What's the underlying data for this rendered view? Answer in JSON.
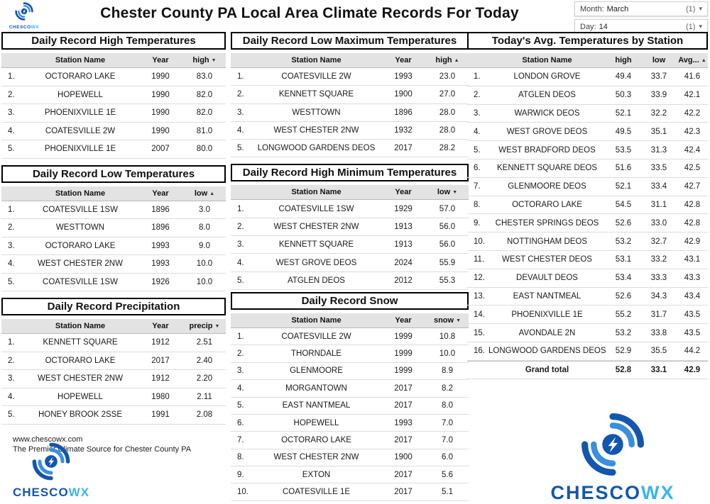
{
  "header": {
    "title": "Chester County PA Local Area Climate Records For Today"
  },
  "filters": {
    "month": {
      "label": "Month:",
      "value": "March",
      "count": "(1)"
    },
    "day": {
      "label": "Day:",
      "value": "14",
      "count": "(1)"
    }
  },
  "icons": {
    "chevron_down": "▾",
    "sort_asc": "▲",
    "sort_desc": "▼"
  },
  "logo": {
    "primary": "CHESCO",
    "secondary": "WX"
  },
  "footer": {
    "website": "www.chescowx.com",
    "tagline": "The Premier Climate Source for Chester County PA"
  },
  "colors": {
    "logo_primary": "#1456ad",
    "logo_secondary": "#38b6ea",
    "table_header_bg": "#e3e3e3",
    "title_border": "#000000"
  },
  "chart_data": [
    {
      "type": "table",
      "title": "Daily Record High Temperatures",
      "headers": [
        "Station Name",
        "Year",
        "high"
      ],
      "sort": {
        "col": 2,
        "dir": "desc"
      },
      "rows": [
        [
          "OCTORARO LAKE",
          "1990",
          "83.0"
        ],
        [
          "HOPEWELL",
          "1990",
          "82.0"
        ],
        [
          "PHOENIXVILLE 1E",
          "1990",
          "82.0"
        ],
        [
          "COATESVILLE 2W",
          "1990",
          "81.0"
        ],
        [
          "PHOENIXVILLE 1E",
          "2007",
          "80.0"
        ]
      ]
    },
    {
      "type": "table",
      "title": "Daily Record Low Temperatures",
      "headers": [
        "Station Name",
        "Year",
        "low"
      ],
      "sort": {
        "col": 2,
        "dir": "asc"
      },
      "rows": [
        [
          "COATESVILLE 1SW",
          "1896",
          "3.0"
        ],
        [
          "WESTTOWN",
          "1896",
          "8.0"
        ],
        [
          "OCTORARO LAKE",
          "1993",
          "9.0"
        ],
        [
          "WEST CHESTER 2NW",
          "1993",
          "10.0"
        ],
        [
          "COATESVILLE 1SW",
          "1926",
          "10.0"
        ]
      ]
    },
    {
      "type": "table",
      "title": "Daily Record Precipitation",
      "headers": [
        "Station Name",
        "Year",
        "precip"
      ],
      "sort": {
        "col": 2,
        "dir": "desc"
      },
      "rows": [
        [
          "KENNETT SQUARE",
          "1912",
          "2.51"
        ],
        [
          "OCTORARO LAKE",
          "2017",
          "2.40"
        ],
        [
          "WEST CHESTER 2NW",
          "1912",
          "2.20"
        ],
        [
          "HOPEWELL",
          "1980",
          "2.11"
        ],
        [
          "HONEY BROOK 2SSE",
          "1991",
          "2.08"
        ]
      ]
    },
    {
      "type": "table",
      "title": "Daily Record Low Maximum Temperatures",
      "headers": [
        "Station Name",
        "Year",
        "high"
      ],
      "sort": {
        "col": 2,
        "dir": "asc"
      },
      "rows": [
        [
          "COATESVILLE 2W",
          "1993",
          "23.0"
        ],
        [
          "KENNETT SQUARE",
          "1900",
          "27.0"
        ],
        [
          "WESTTOWN",
          "1896",
          "28.0"
        ],
        [
          "WEST CHESTER 2NW",
          "1932",
          "28.0"
        ],
        [
          "LONGWOOD GARDENS DEOS",
          "2017",
          "28.2"
        ]
      ]
    },
    {
      "type": "table",
      "title": "Daily Record High Minimum Temperatures",
      "headers": [
        "Station Name",
        "Year",
        "low"
      ],
      "sort": {
        "col": 2,
        "dir": "desc"
      },
      "rows": [
        [
          "COATESVILLE 1SW",
          "1929",
          "57.0"
        ],
        [
          "WEST CHESTER 2NW",
          "1913",
          "56.0"
        ],
        [
          "KENNETT SQUARE",
          "1913",
          "56.0"
        ],
        [
          "WEST GROVE DEOS",
          "2024",
          "55.9"
        ],
        [
          "ATGLEN DEOS",
          "2012",
          "55.3"
        ]
      ]
    },
    {
      "type": "table",
      "title": "Daily Record Snow",
      "headers": [
        "Station Name",
        "Year",
        "snow"
      ],
      "sort": {
        "col": 2,
        "dir": "desc"
      },
      "rows": [
        [
          "COATESVILLE 2W",
          "1999",
          "10.8"
        ],
        [
          "THORNDALE",
          "1999",
          "10.0"
        ],
        [
          "GLENMOORE",
          "1999",
          "8.9"
        ],
        [
          "MORGANTOWN",
          "2017",
          "8.2"
        ],
        [
          "EAST NANTMEAL",
          "2017",
          "8.0"
        ],
        [
          "HOPEWELL",
          "1993",
          "7.0"
        ],
        [
          "OCTORARO LAKE",
          "2017",
          "7.0"
        ],
        [
          "WEST CHESTER 2NW",
          "1900",
          "6.0"
        ],
        [
          "EXTON",
          "2017",
          "5.6"
        ],
        [
          "COATESVILLE 1E",
          "2017",
          "5.1"
        ]
      ]
    },
    {
      "type": "table",
      "title": "Today's Avg. Temperatures by Station",
      "headers": [
        "Station Name",
        "high",
        "low",
        "Avg..."
      ],
      "sort": {
        "col": 3,
        "dir": "asc"
      },
      "rows": [
        [
          "LONDON GROVE",
          "49.4",
          "33.7",
          "41.6"
        ],
        [
          "ATGLEN DEOS",
          "50.3",
          "33.9",
          "42.1"
        ],
        [
          "WARWICK DEOS",
          "52.1",
          "32.2",
          "42.2"
        ],
        [
          "WEST GROVE DEOS",
          "49.5",
          "35.1",
          "42.3"
        ],
        [
          "WEST BRADFORD DEOS",
          "53.5",
          "31.3",
          "42.4"
        ],
        [
          "KENNETT SQUARE DEOS",
          "51.6",
          "33.5",
          "42.5"
        ],
        [
          "GLENMOORE DEOS",
          "52.1",
          "33.4",
          "42.7"
        ],
        [
          "OCTORARO LAKE",
          "54.5",
          "31.1",
          "42.8"
        ],
        [
          "CHESTER SPRINGS DEOS",
          "52.6",
          "33.0",
          "42.8"
        ],
        [
          "NOTTINGHAM DEOS",
          "53.2",
          "32.7",
          "42.9"
        ],
        [
          "WEST CHESTER DEOS",
          "53.1",
          "33.2",
          "43.1"
        ],
        [
          "DEVAULT DEOS",
          "53.4",
          "33.3",
          "43.3"
        ],
        [
          "EAST NANTMEAL",
          "52.6",
          "34.3",
          "43.4"
        ],
        [
          "PHOENIXVILLE 1E",
          "55.2",
          "31.7",
          "43.5"
        ],
        [
          "AVONDALE 2N",
          "53.2",
          "33.8",
          "43.5"
        ],
        [
          "LONGWOOD GARDENS DEOS",
          "52.9",
          "35.5",
          "44.2"
        ]
      ],
      "grand_total": {
        "label": "Grand total",
        "values": [
          "52.8",
          "33.1",
          "42.9"
        ]
      }
    }
  ]
}
